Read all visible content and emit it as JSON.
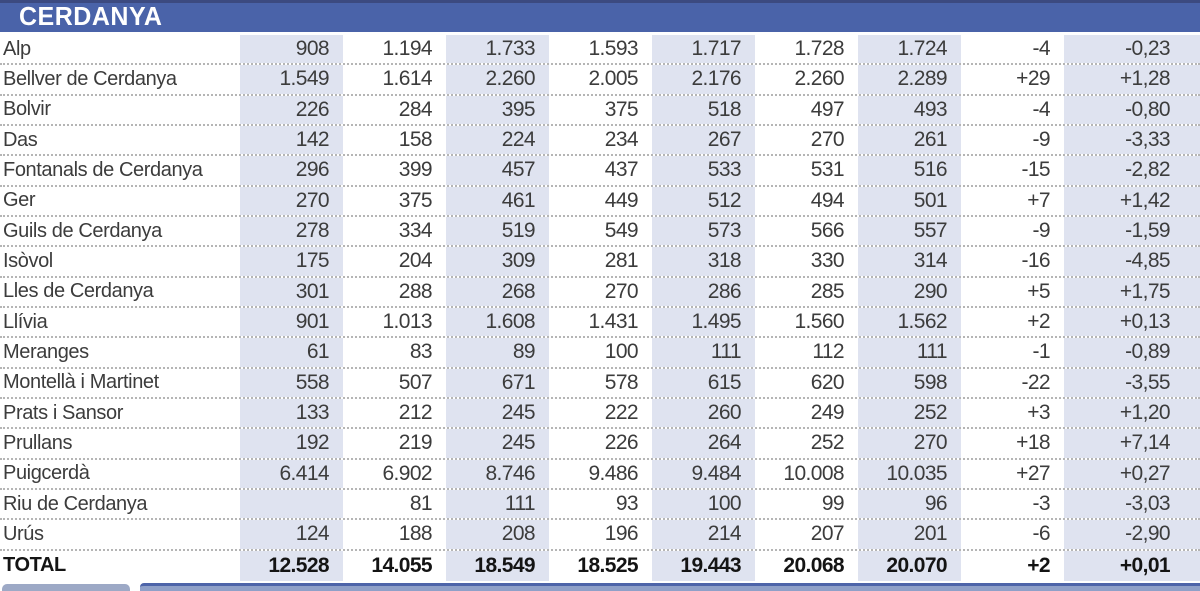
{
  "header": {
    "title": "CERDANYA"
  },
  "colors": {
    "header_bg": "#4a63a9",
    "header_top_line": "#3c4a80",
    "header_text": "#ffffff",
    "shaded_col": "#dfe3f0",
    "dotted_line": "#b5b5b5",
    "text_color": "#3c3c3c",
    "total_text": "#141414",
    "tab_color": "#9da9c6",
    "nextbar_top": "#4d64a9",
    "nextbar_body": "#8fa0c8"
  },
  "chart_data": {
    "type": "table",
    "title": "CERDANYA",
    "legend_position": "none",
    "grid": "dotted-row-separators",
    "shaded_value_columns": [
      0,
      2,
      4,
      6,
      8
    ],
    "rows": [
      {
        "name": "Alp",
        "values": [
          "908",
          "1.194",
          "1.733",
          "1.593",
          "1.717",
          "1.728",
          "1.724",
          "-4",
          "-0,23"
        ]
      },
      {
        "name": "Bellver de Cerdanya",
        "values": [
          "1.549",
          "1.614",
          "2.260",
          "2.005",
          "2.176",
          "2.260",
          "2.289",
          "+29",
          "+1,28"
        ]
      },
      {
        "name": "Bolvir",
        "values": [
          "226",
          "284",
          "395",
          "375",
          "518",
          "497",
          "493",
          "-4",
          "-0,80"
        ]
      },
      {
        "name": "Das",
        "values": [
          "142",
          "158",
          "224",
          "234",
          "267",
          "270",
          "261",
          "-9",
          "-3,33"
        ]
      },
      {
        "name": "Fontanals de Cerdanya",
        "values": [
          "296",
          "399",
          "457",
          "437",
          "533",
          "531",
          "516",
          "-15",
          "-2,82"
        ]
      },
      {
        "name": "Ger",
        "values": [
          "270",
          "375",
          "461",
          "449",
          "512",
          "494",
          "501",
          "+7",
          "+1,42"
        ]
      },
      {
        "name": "Guils de Cerdanya",
        "values": [
          "278",
          "334",
          "519",
          "549",
          "573",
          "566",
          "557",
          "-9",
          "-1,59"
        ]
      },
      {
        "name": "Isòvol",
        "values": [
          "175",
          "204",
          "309",
          "281",
          "318",
          "330",
          "314",
          "-16",
          "-4,85"
        ]
      },
      {
        "name": "Lles de Cerdanya",
        "values": [
          "301",
          "288",
          "268",
          "270",
          "286",
          "285",
          "290",
          "+5",
          "+1,75"
        ]
      },
      {
        "name": "Llívia",
        "values": [
          "901",
          "1.013",
          "1.608",
          "1.431",
          "1.495",
          "1.560",
          "1.562",
          "+2",
          "+0,13"
        ]
      },
      {
        "name": "Meranges",
        "values": [
          "61",
          "83",
          "89",
          "100",
          "111",
          "112",
          "111",
          "-1",
          "-0,89"
        ]
      },
      {
        "name": "Montellà i Martinet",
        "values": [
          "558",
          "507",
          "671",
          "578",
          "615",
          "620",
          "598",
          "-22",
          "-3,55"
        ]
      },
      {
        "name": "Prats i Sansor",
        "values": [
          "133",
          "212",
          "245",
          "222",
          "260",
          "249",
          "252",
          "+3",
          "+1,20"
        ]
      },
      {
        "name": "Prullans",
        "values": [
          "192",
          "219",
          "245",
          "226",
          "264",
          "252",
          "270",
          "+18",
          "+7,14"
        ]
      },
      {
        "name": "Puigcerdà",
        "values": [
          "6.414",
          "6.902",
          "8.746",
          "9.486",
          "9.484",
          "10.008",
          "10.035",
          "+27",
          "+0,27"
        ]
      },
      {
        "name": "Riu de Cerdanya",
        "values": [
          "",
          "81",
          "111",
          "93",
          "100",
          "99",
          "96",
          "-3",
          "-3,03"
        ]
      },
      {
        "name": "Urús",
        "values": [
          "124",
          "188",
          "208",
          "196",
          "214",
          "207",
          "201",
          "-6",
          "-2,90"
        ]
      }
    ],
    "total": {
      "name": "TOTAL",
      "values": [
        "12.528",
        "14.055",
        "18.549",
        "18.525",
        "19.443",
        "20.068",
        "20.070",
        "+2",
        "+0,01"
      ]
    }
  }
}
